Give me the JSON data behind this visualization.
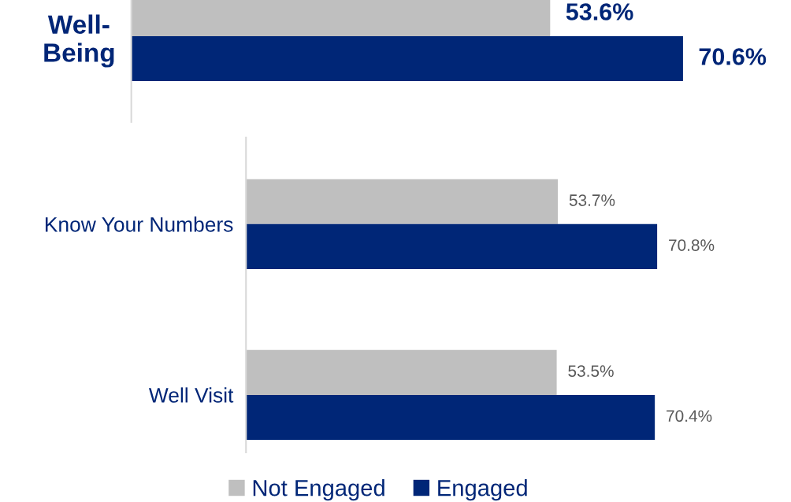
{
  "chart_data": [
    {
      "type": "bar",
      "orientation": "horizontal",
      "categories": [
        "Well-Being"
      ],
      "tick_labels": "y",
      "legend": false,
      "series": [
        {
          "color": "#bfbfbf",
          "values": [
            53.6
          ],
          "value_labels": [
            "53.6%"
          ]
        },
        {
          "color": "#002677",
          "values": [
            70.6
          ],
          "value_labels": [
            "70.6%"
          ]
        }
      ]
    },
    {
      "type": "bar",
      "orientation": "horizontal",
      "categories": [
        "Know Your Numbers",
        "Well Visit"
      ],
      "tick_labels": "y",
      "legend": "bottom",
      "series": [
        {
          "name": "Not Engaged",
          "color": "#bfbfbf",
          "values": [
            53.7,
            53.5
          ],
          "value_labels": [
            "53.7%",
            "53.5%"
          ]
        },
        {
          "name": "Engaged",
          "color": "#002677",
          "values": [
            70.8,
            70.4
          ],
          "value_labels": [
            "70.8%",
            "70.4%"
          ]
        }
      ]
    }
  ]
}
